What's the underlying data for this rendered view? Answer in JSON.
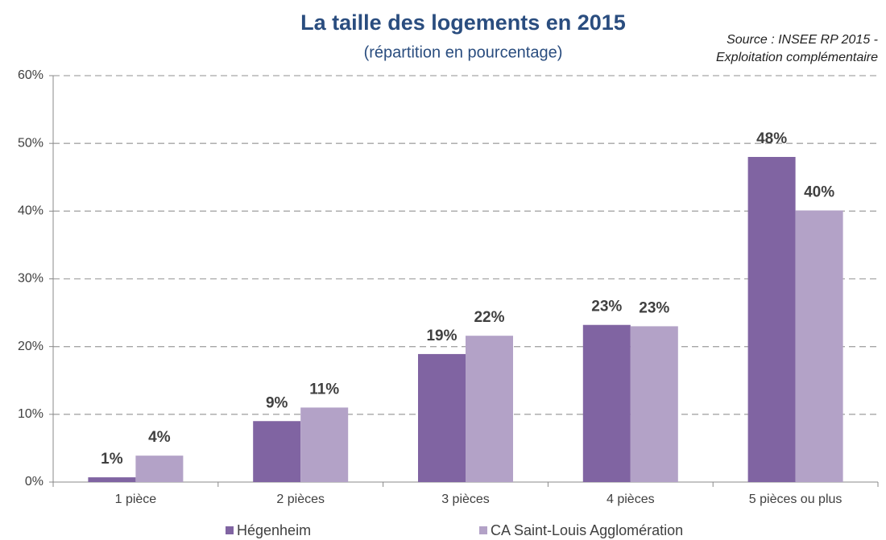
{
  "chart_data": {
    "type": "bar",
    "title": "La taille des logements en 2015",
    "subtitle": "(répartition en pourcentage)",
    "source": [
      "Source : INSEE RP 2015 -",
      "Exploitation complémentaire"
    ],
    "categories": [
      "1 pièce",
      "2 pièces",
      "3 pièces",
      "4 pièces",
      "5 pièces ou plus"
    ],
    "series": [
      {
        "name": "Hégenheim",
        "color": "#8064a2",
        "values": [
          0.7,
          9.0,
          18.9,
          23.2,
          48.0
        ],
        "value_labels": [
          "1%",
          "9%",
          "19%",
          "23%",
          "48%"
        ]
      },
      {
        "name": "CA Saint-Louis Agglomération",
        "color": "#b3a2c7",
        "values": [
          3.9,
          11.0,
          21.6,
          23.0,
          40.1
        ],
        "value_labels": [
          "4%",
          "11%",
          "22%",
          "23%",
          "40%"
        ]
      }
    ],
    "ylim": [
      0,
      60
    ],
    "yticks": [
      {
        "value": 0,
        "label": "0%"
      },
      {
        "value": 10,
        "label": "10%"
      },
      {
        "value": 20,
        "label": "20%"
      },
      {
        "value": 30,
        "label": "30%"
      },
      {
        "value": 40,
        "label": "40%"
      },
      {
        "value": 50,
        "label": "50%"
      },
      {
        "value": 60,
        "label": "60%"
      }
    ],
    "grid": true,
    "legend": "bottom"
  }
}
